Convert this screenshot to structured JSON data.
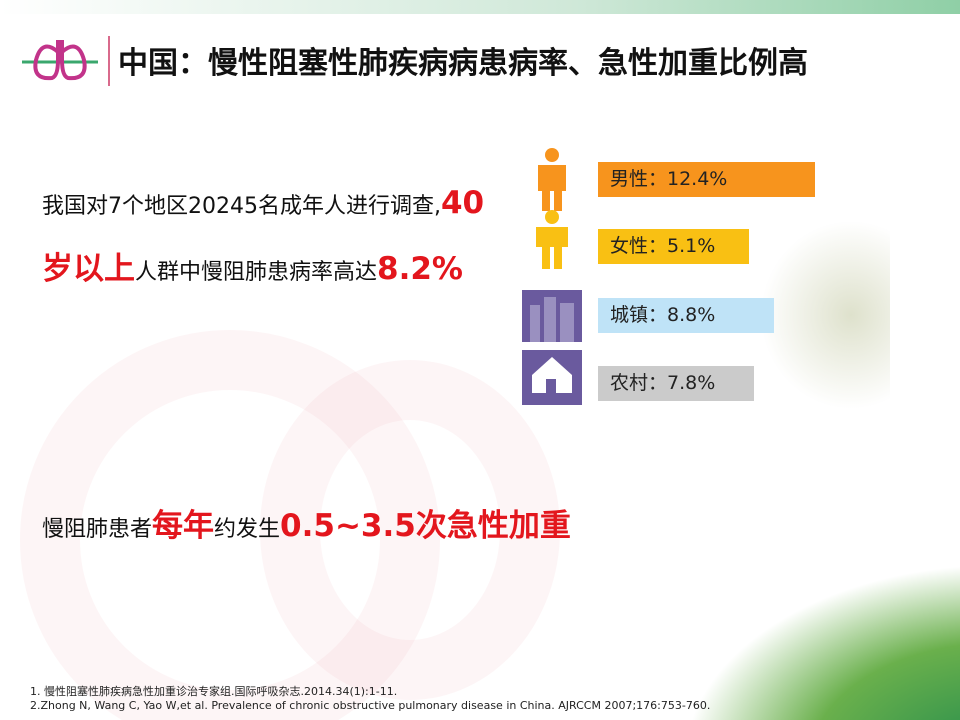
{
  "header": {
    "title": "中国：慢性阻塞性肺疾病病患病率、急性加重比例高"
  },
  "paragraph_1": [
    "我国对7个地区20245名成年人进行调查,",
    "40岁以上",
    "人群中慢阻肺患病率高达",
    "8.2%"
  ],
  "stats": [
    {
      "label": "男性：12.4%"
    },
    {
      "label": "女性：5.1%"
    },
    {
      "label": "城镇：8.8%"
    },
    {
      "label": "农村：7.8%"
    }
  ],
  "paragraph_2": [
    "慢阻肺患者",
    "每年",
    "约发生",
    "0.5~3.5次急性加重"
  ],
  "footnotes": [
    "1. 慢性阻塞性肺疾病急性加重诊治专家组.国际呼吸杂志.2014.34(1):1-11.",
    "2.Zhong N, Wang C, Yao W,et al. Prevalence of chronic obstructive pulmonary disease in China. AJRCCM 2007;176:753-760."
  ]
}
